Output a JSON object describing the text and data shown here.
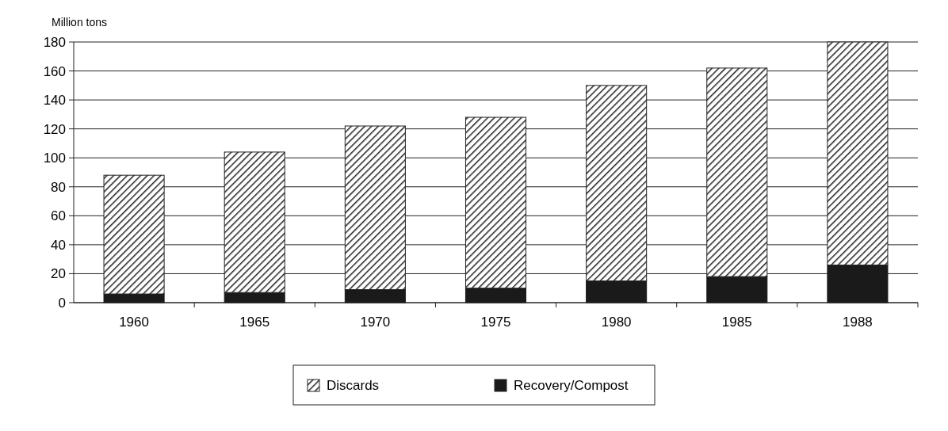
{
  "chart_data": {
    "type": "bar",
    "stacked": true,
    "ylabel": "Million tons",
    "categories": [
      "1960",
      "1965",
      "1970",
      "1975",
      "1980",
      "1985",
      "1988"
    ],
    "series": [
      {
        "name": "Recovery/Compost",
        "color": "#1a1a1a",
        "values": [
          6,
          7,
          9,
          10,
          15,
          18,
          26
        ]
      },
      {
        "name": "Discards",
        "color": "#222222",
        "values": [
          82,
          97,
          113,
          118,
          135,
          144,
          154
        ]
      }
    ],
    "ylim": [
      0,
      180
    ],
    "yticks": [
      0,
      20,
      40,
      60,
      80,
      100,
      120,
      140,
      160,
      180
    ],
    "grid": "y",
    "legend": "bottom"
  }
}
